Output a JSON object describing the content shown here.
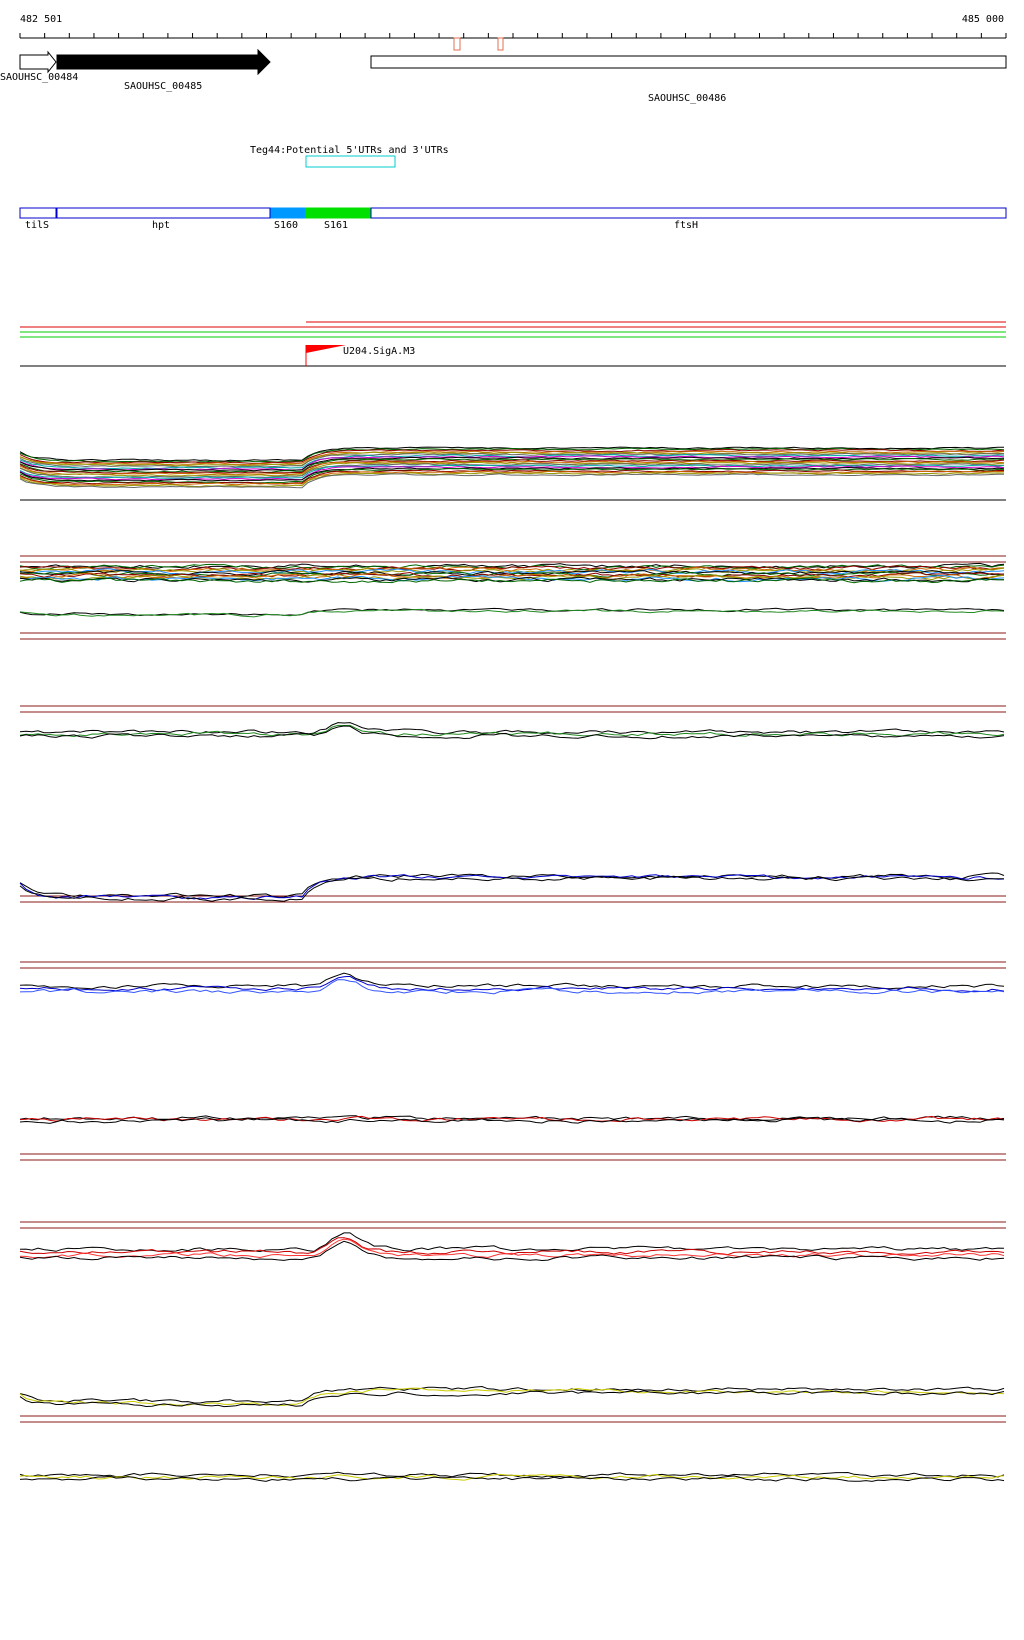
{
  "ruler": {
    "start_label": "482 501",
    "end_label": "485 000",
    "start": 482501,
    "end": 485000
  },
  "genes": [
    {
      "id": "SAOUHSC_00484",
      "start": 482501,
      "end": 482592,
      "strand": "+",
      "fill": "#ffffff"
    },
    {
      "id": "SAOUHSC_00485",
      "start": 482596,
      "end": 483139,
      "strand": "+",
      "fill": "#000000"
    },
    {
      "id": "SAOUHSC_00486",
      "start": 483318,
      "end": 485000,
      "strand": "+",
      "fill": "#ffffff"
    }
  ],
  "utr_annotation": {
    "label": "Teg44:Potential 5'UTRs and 3'UTRs",
    "start": 483227,
    "end": 483457,
    "color": "#00cccc"
  },
  "operon_blocks": [
    {
      "label": "tilS",
      "start": 482501,
      "end": 482592,
      "fill": "#ffffff"
    },
    {
      "label": "hpt",
      "start": 482596,
      "end": 483139,
      "fill": "#ffffff"
    },
    {
      "label": "S160",
      "start": 483140,
      "end": 483227,
      "fill": "#0099ff"
    },
    {
      "label": "S161",
      "start": 483228,
      "end": 483317,
      "fill": "#00e000"
    },
    {
      "label": "ftsH",
      "start": 483318,
      "end": 485000,
      "fill": "#ffffff"
    }
  ],
  "promoter": {
    "label": "U204.SigA.M3",
    "position": 483228,
    "color": "#ff0000"
  },
  "colors": {
    "outline_blue": "#0000cc",
    "track_border": "#8b1a1a",
    "utr_red": "#ff0000",
    "utr_green": "#00cc00"
  },
  "expression_tracks": [
    {
      "name": "track-1",
      "colors": [
        "#000000",
        "#006600",
        "#8b0000",
        "#cc6600",
        "#999900",
        "#666666",
        "#00aaaa",
        "#cc00cc"
      ]
    },
    {
      "name": "track-2",
      "colors": [
        "#000000",
        "#006600",
        "#8b0000",
        "#cc6600",
        "#999900",
        "#1e90ff"
      ]
    },
    {
      "name": "track-3",
      "colors": [
        "#000000",
        "#228b22"
      ]
    },
    {
      "name": "track-4",
      "colors": [
        "#000000",
        "#0000cc"
      ]
    },
    {
      "name": "track-5",
      "colors": [
        "#000000",
        "#0000cc",
        "#3355ff"
      ]
    },
    {
      "name": "track-6",
      "colors": [
        "#000000",
        "#cc0000"
      ]
    },
    {
      "name": "track-7",
      "colors": [
        "#000000",
        "#cc0000",
        "#ff3333"
      ]
    },
    {
      "name": "track-8",
      "colors": [
        "#000000",
        "#cccc00"
      ]
    },
    {
      "name": "track-9",
      "colors": [
        "#000000",
        "#cccc00"
      ]
    }
  ]
}
